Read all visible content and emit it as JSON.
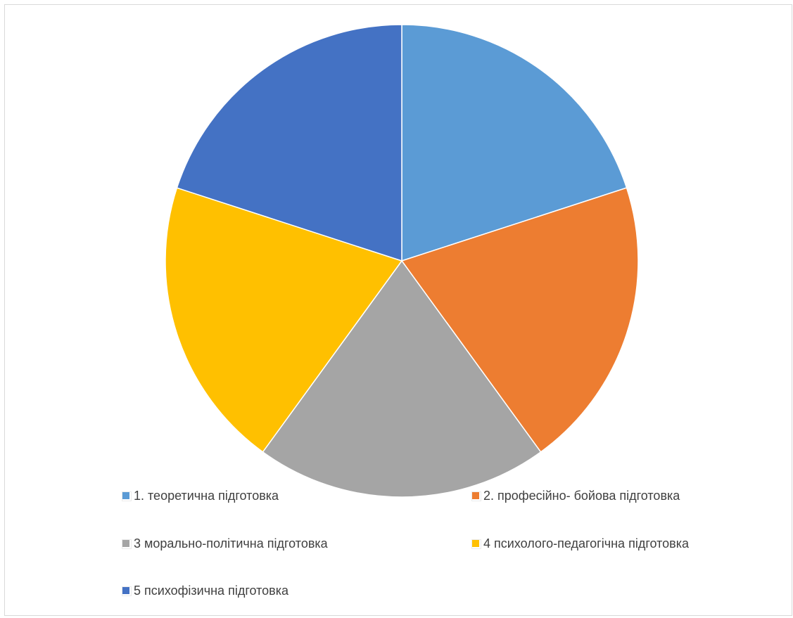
{
  "chart_data": {
    "type": "pie",
    "title": "",
    "categories": [
      "1. теоретична підготовка",
      "2. професійно- бойова підготовка",
      "3 морально-політична підготовка",
      "4  психолого-педагогічна підготовка",
      "5 психофізична підготовка"
    ],
    "values": [
      20,
      20,
      20,
      20,
      20
    ],
    "colors": [
      "#5b9bd5",
      "#ed7d31",
      "#a5a5a5",
      "#ffc000",
      "#4472c4"
    ],
    "legend_position": "bottom",
    "grid": false
  }
}
